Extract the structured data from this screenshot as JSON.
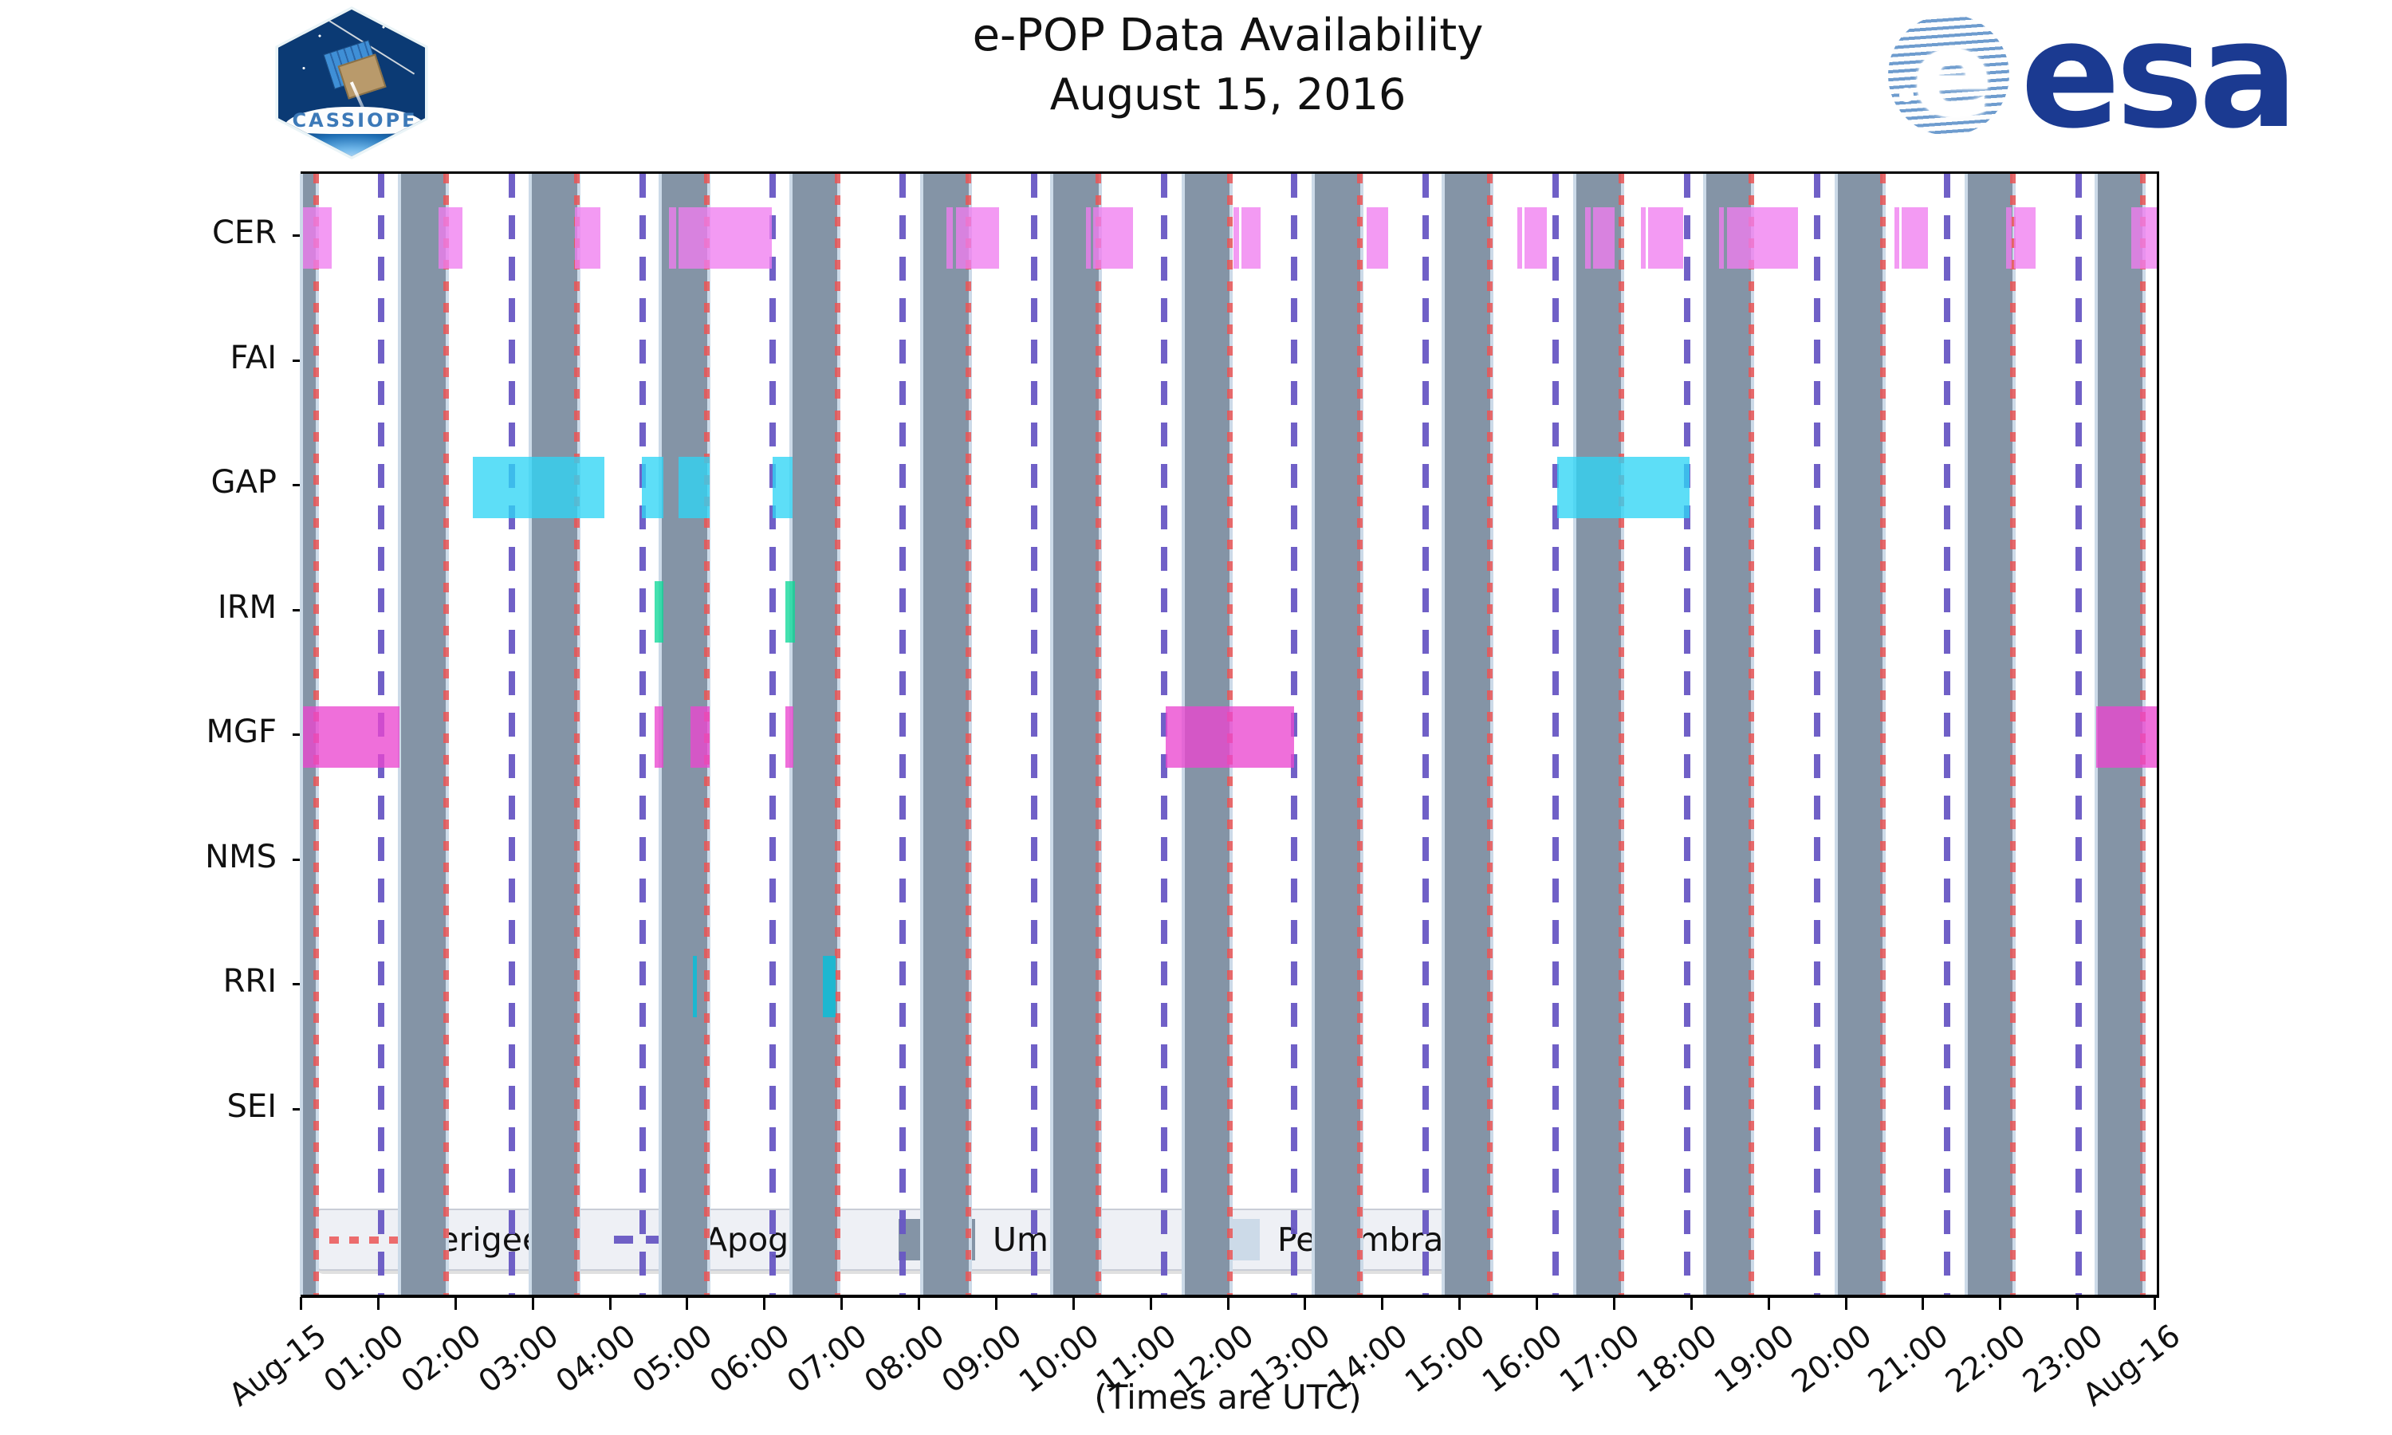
{
  "title": {
    "line1": "e-POP Data Availability",
    "line2": "August 15, 2016"
  },
  "footer": "(Times are UTC)",
  "logos": {
    "cassiope_label": "CASSIOPE",
    "esa_label": "esa",
    "esa_color": "#1b3a91"
  },
  "legend": {
    "items": [
      {
        "label": "Perigee",
        "style": "red-dotted-line",
        "color": "#eb5555"
      },
      {
        "label": "Apogee",
        "style": "purple-dashed-line",
        "color": "#6858c4"
      },
      {
        "label": "Umbra",
        "style": "filled-patch",
        "color": "#8494a6"
      },
      {
        "label": "Penumbra",
        "style": "filled-patch",
        "color": "#ccdae8"
      }
    ]
  },
  "chart_data": {
    "type": "timeline",
    "title": "e-POP Data Availability — August 15, 2016",
    "xlabel": "(Times are UTC)",
    "x_range": [
      "Aug-15 00:00",
      "Aug-16 00:00"
    ],
    "x_ticks": [
      "Aug-15",
      "01:00",
      "02:00",
      "03:00",
      "04:00",
      "05:00",
      "06:00",
      "07:00",
      "08:00",
      "09:00",
      "10:00",
      "11:00",
      "12:00",
      "13:00",
      "14:00",
      "15:00",
      "16:00",
      "17:00",
      "18:00",
      "19:00",
      "20:00",
      "21:00",
      "22:00",
      "23:00",
      "Aug-16"
    ],
    "instruments": [
      "CER",
      "FAI",
      "GAP",
      "IRM",
      "MGF",
      "NMS",
      "RRI",
      "SEI"
    ],
    "perigee_times": [
      "00:10",
      "01:51",
      "03:33",
      "05:14",
      "06:55",
      "08:37",
      "10:18",
      "12:00",
      "13:41",
      "15:22",
      "17:04",
      "18:45",
      "20:27",
      "22:08",
      "23:49"
    ],
    "apogee_times": [
      "01:01",
      "02:42",
      "04:24",
      "06:05",
      "07:46",
      "09:28",
      "11:09",
      "12:50",
      "14:32",
      "16:13",
      "17:55",
      "19:36",
      "21:17",
      "22:59"
    ],
    "umbra_windows": [
      [
        "00:00",
        "00:10"
      ],
      [
        "01:16",
        "01:51"
      ],
      [
        "02:58",
        "03:33"
      ],
      [
        "04:39",
        "05:14"
      ],
      [
        "06:20",
        "06:55"
      ],
      [
        "08:02",
        "08:37"
      ],
      [
        "09:43",
        "10:18"
      ],
      [
        "11:25",
        "12:00"
      ],
      [
        "13:06",
        "13:41"
      ],
      [
        "14:47",
        "15:22"
      ],
      [
        "16:29",
        "17:04"
      ],
      [
        "18:10",
        "18:45"
      ],
      [
        "19:52",
        "20:27"
      ],
      [
        "21:33",
        "22:08"
      ],
      [
        "23:14",
        "23:49"
      ]
    ],
    "penumbra_note": "thin penumbra strips flank each umbra band",
    "series": [
      {
        "instrument": "CER",
        "color": "#f07ef0",
        "windows": [
          [
            "00:00",
            "00:22"
          ],
          [
            "01:45",
            "02:04"
          ],
          [
            "03:31",
            "03:51"
          ],
          [
            "04:44",
            "04:50"
          ],
          [
            "04:52",
            "06:04"
          ],
          [
            "08:20",
            "08:25"
          ],
          [
            "08:27",
            "09:01"
          ],
          [
            "10:08",
            "10:12"
          ],
          [
            "10:14",
            "10:45"
          ],
          [
            "12:03",
            "12:07"
          ],
          [
            "12:09",
            "12:24"
          ],
          [
            "13:46",
            "14:03"
          ],
          [
            "15:43",
            "15:47"
          ],
          [
            "15:49",
            "16:06"
          ],
          [
            "16:36",
            "16:40"
          ],
          [
            "16:42",
            "16:59"
          ],
          [
            "17:19",
            "17:23"
          ],
          [
            "17:25",
            "17:52"
          ],
          [
            "18:20",
            "18:24"
          ],
          [
            "18:26",
            "19:21"
          ],
          [
            "20:36",
            "20:40"
          ],
          [
            "20:42",
            "21:02"
          ],
          [
            "22:03",
            "22:07"
          ],
          [
            "22:09",
            "22:26"
          ],
          [
            "23:40",
            "24:00"
          ]
        ]
      },
      {
        "instrument": "FAI",
        "color": null,
        "windows": []
      },
      {
        "instrument": "GAP",
        "color": "#30d5f5",
        "windows": [
          [
            "02:12",
            "03:54"
          ],
          [
            "04:23",
            "04:40"
          ],
          [
            "04:52",
            "05:16"
          ],
          [
            "06:05",
            "06:20"
          ],
          [
            "16:14",
            "17:57"
          ]
        ]
      },
      {
        "instrument": "IRM",
        "color": "#0fd898",
        "windows": [
          [
            "04:33",
            "04:40"
          ],
          [
            "06:15",
            "06:22"
          ]
        ]
      },
      {
        "instrument": "MGF",
        "color": "#ea46cf",
        "windows": [
          [
            "00:00",
            "01:15"
          ],
          [
            "04:33",
            "04:40"
          ],
          [
            "05:01",
            "05:16"
          ],
          [
            "06:15",
            "06:21"
          ],
          [
            "11:10",
            "12:50"
          ],
          [
            "23:13",
            "24:00"
          ]
        ]
      },
      {
        "instrument": "NMS",
        "color": null,
        "windows": []
      },
      {
        "instrument": "RRI",
        "color": "#00c2dc",
        "windows": [
          [
            "05:03",
            "05:06"
          ],
          [
            "06:44",
            "06:54"
          ]
        ]
      },
      {
        "instrument": "SEI",
        "color": null,
        "windows": []
      }
    ],
    "colors": {
      "umbra": "#8494a6",
      "penumbra": "#ccdae8",
      "perigee": "#eb5555",
      "apogee": "#6858c4"
    },
    "legend_position": "lower-left inside axes",
    "grid": false
  }
}
